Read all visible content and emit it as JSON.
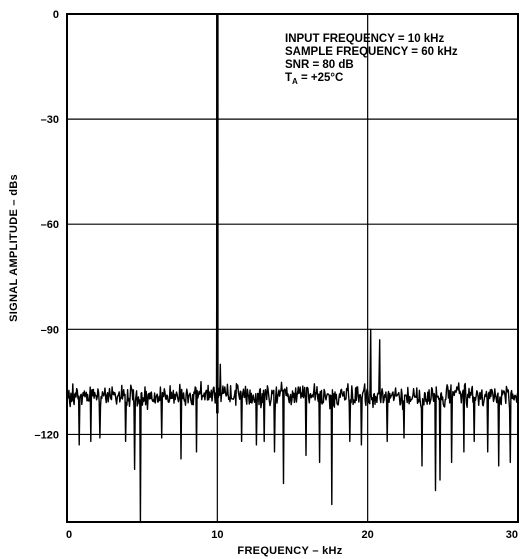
{
  "chart_data": {
    "type": "line",
    "xlabel": "FREQUENCY – kHz",
    "ylabel": "SIGNAL AMPLITUDE – dBs",
    "xlim": [
      0,
      30
    ],
    "ylim": [
      -145,
      0
    ],
    "grid": true,
    "x_ticks": [
      {
        "value": 0,
        "label": "0"
      },
      {
        "value": 10,
        "label": "10"
      },
      {
        "value": 20,
        "label": "20"
      },
      {
        "value": 30,
        "label": "30"
      }
    ],
    "y_ticks": [
      {
        "value": 0,
        "label": "0"
      },
      {
        "value": -30,
        "label": "–30"
      },
      {
        "value": -60,
        "label": "–60"
      },
      {
        "value": -90,
        "label": "–90"
      },
      {
        "value": -120,
        "label": "–120"
      }
    ],
    "annotations": [
      {
        "text": "INPUT FREQUENCY = 10 kHz"
      },
      {
        "text": "SAMPLE FREQUENCY = 60 kHz"
      },
      {
        "text": "SNR = 80 dB"
      },
      {
        "main": "T",
        "sub": "A",
        "rest": " = +25°C"
      }
    ],
    "series": [
      {
        "noise_floor_range": [
          -114,
          -104
        ],
        "noise_spikes": [
          {
            "x": 0.8,
            "y": -123
          },
          {
            "x": 1.6,
            "y": -122
          },
          {
            "x": 2.2,
            "y": -121
          },
          {
            "x": 3.9,
            "y": -122
          },
          {
            "x": 4.5,
            "y": -130
          },
          {
            "x": 4.9,
            "y": -145
          },
          {
            "x": 6.3,
            "y": -121
          },
          {
            "x": 7.6,
            "y": -127
          },
          {
            "x": 8.6,
            "y": -125
          },
          {
            "x": 11.6,
            "y": -122
          },
          {
            "x": 12.6,
            "y": -123
          },
          {
            "x": 13.1,
            "y": -122
          },
          {
            "x": 13.8,
            "y": -125
          },
          {
            "x": 14.4,
            "y": -134
          },
          {
            "x": 15.9,
            "y": -126
          },
          {
            "x": 16.8,
            "y": -128
          },
          {
            "x": 17.6,
            "y": -140
          },
          {
            "x": 18.8,
            "y": -122
          },
          {
            "x": 19.6,
            "y": -123
          },
          {
            "x": 21.3,
            "y": -122
          },
          {
            "x": 22.4,
            "y": -121
          },
          {
            "x": 23.6,
            "y": -129
          },
          {
            "x": 24.5,
            "y": -136
          },
          {
            "x": 24.8,
            "y": -133
          },
          {
            "x": 25.6,
            "y": -128
          },
          {
            "x": 26.4,
            "y": -125
          },
          {
            "x": 27.1,
            "y": -122
          },
          {
            "x": 28.0,
            "y": -125
          },
          {
            "x": 28.7,
            "y": -129
          },
          {
            "x": 29.5,
            "y": -128
          }
        ],
        "peaks": [
          {
            "x": 10.0,
            "y": 0
          },
          {
            "x": 10.2,
            "y": -100
          },
          {
            "x": 20.2,
            "y": -90
          },
          {
            "x": 20.8,
            "y": -93
          }
        ]
      }
    ]
  }
}
